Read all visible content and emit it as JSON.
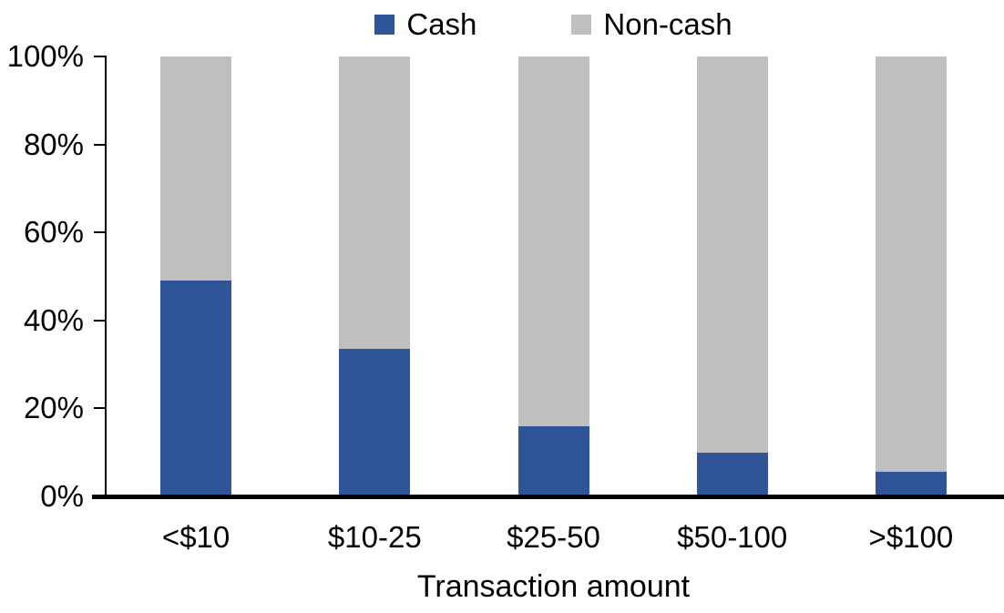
{
  "chart_data": {
    "type": "bar",
    "stacked": true,
    "percent_stacked": true,
    "title": "",
    "xlabel": "Transaction amount",
    "ylabel": "",
    "categories": [
      "<$10",
      "$10-25",
      "$25-50",
      "$50-100",
      ">$100"
    ],
    "series": [
      {
        "name": "Cash",
        "color": "#2F5597",
        "values": [
          49,
          33.5,
          16,
          10,
          5.5
        ]
      },
      {
        "name": "Non-cash",
        "color": "#BFBFBF",
        "values": [
          51,
          66.5,
          84,
          90,
          94.5
        ]
      }
    ],
    "ylim": [
      0,
      100
    ],
    "yticks": [
      "0%",
      "20%",
      "40%",
      "60%",
      "80%",
      "100%"
    ],
    "grid": false,
    "legend_position": "top",
    "axis_color": "#000000",
    "text_color": "#000000",
    "background_color": "#FFFFFF"
  }
}
